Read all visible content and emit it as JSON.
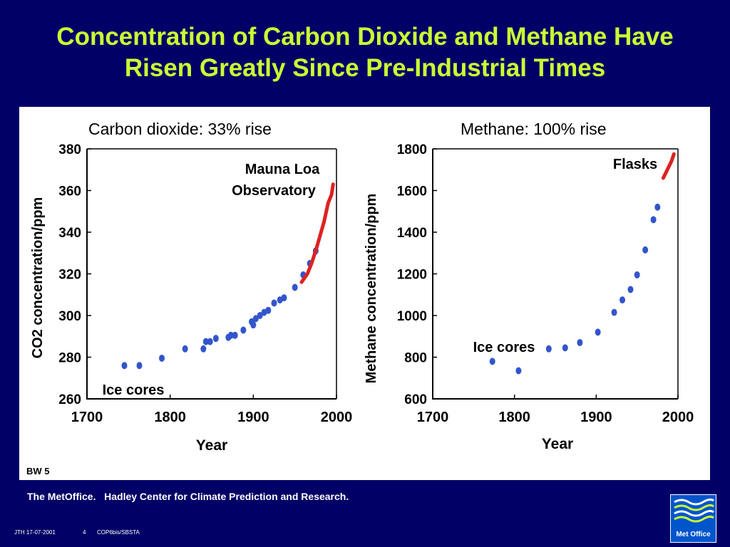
{
  "slide": {
    "title_line1": "Concentration of Carbon Dioxide and Methane Have",
    "title_line2": "Risen Greatly Since Pre-Industrial Times",
    "badge": "BW 5",
    "credit": "The MetOffice.   Hadley Center for Climate Prediction and Research.",
    "footer_author_date": "JTH 17-07-2001",
    "footer_page": "4",
    "footer_ref": "COP6bis/SBSTA",
    "logo_text": "Met Office",
    "colors": {
      "background": "#000066",
      "title": "#ccff33",
      "points": "#3355cc",
      "line": "#dd2222"
    }
  },
  "chart_data": [
    {
      "type": "scatter",
      "title": "Carbon dioxide: 33% rise",
      "xlabel": "Year",
      "ylabel": "CO2 concentration/ppm",
      "xlim": [
        1700,
        2000
      ],
      "ylim": [
        260,
        380
      ],
      "xticks": [
        1700,
        1800,
        1900,
        2000
      ],
      "yticks": [
        260,
        280,
        300,
        320,
        340,
        360,
        380
      ],
      "grid": false,
      "annotations": [
        "Mauna Loa",
        "Observatory",
        "Ice cores"
      ],
      "series": [
        {
          "name": "Ice cores",
          "x": [
            1745,
            1763,
            1790,
            1818,
            1840,
            1843,
            1848,
            1855,
            1870,
            1873,
            1878,
            1888,
            1898,
            1900,
            1903,
            1908,
            1913,
            1918,
            1925,
            1932,
            1937,
            1950,
            1960,
            1968,
            1975
          ],
          "y": [
            276,
            276,
            279.5,
            284,
            284,
            287.5,
            287.5,
            289,
            289.5,
            290.5,
            290.5,
            293,
            297,
            295.5,
            298.5,
            300,
            301.5,
            302.5,
            306,
            307.5,
            308.5,
            313.5,
            319.5,
            325,
            331
          ]
        },
        {
          "name": "Mauna Loa Observatory",
          "x": [
            1958,
            1965,
            1970,
            1975,
            1980,
            1985,
            1990,
            1994,
            1996
          ],
          "y": [
            316,
            320,
            325,
            331,
            338,
            345,
            354,
            358,
            363
          ]
        }
      ]
    },
    {
      "type": "scatter",
      "title": "Methane: 100% rise",
      "xlabel": "Year",
      "ylabel": "Methane concentration/ppm",
      "xlim": [
        1700,
        2000
      ],
      "ylim": [
        600,
        1800
      ],
      "xticks": [
        1700,
        1800,
        1900,
        2000
      ],
      "yticks": [
        600,
        800,
        1000,
        1200,
        1400,
        1600,
        1800
      ],
      "grid": false,
      "annotations": [
        "Flasks",
        "Ice cores"
      ],
      "series": [
        {
          "name": "Ice cores",
          "x": [
            1773,
            1805,
            1842,
            1862,
            1880,
            1902,
            1922,
            1932,
            1942,
            1950,
            1960,
            1970,
            1975
          ],
          "y": [
            780,
            735,
            840,
            845,
            870,
            920,
            1015,
            1075,
            1125,
            1195,
            1315,
            1460,
            1520
          ]
        },
        {
          "name": "Flasks",
          "x": [
            1982,
            1987,
            1992,
            1995
          ],
          "y": [
            1660,
            1700,
            1740,
            1775
          ]
        }
      ]
    }
  ]
}
